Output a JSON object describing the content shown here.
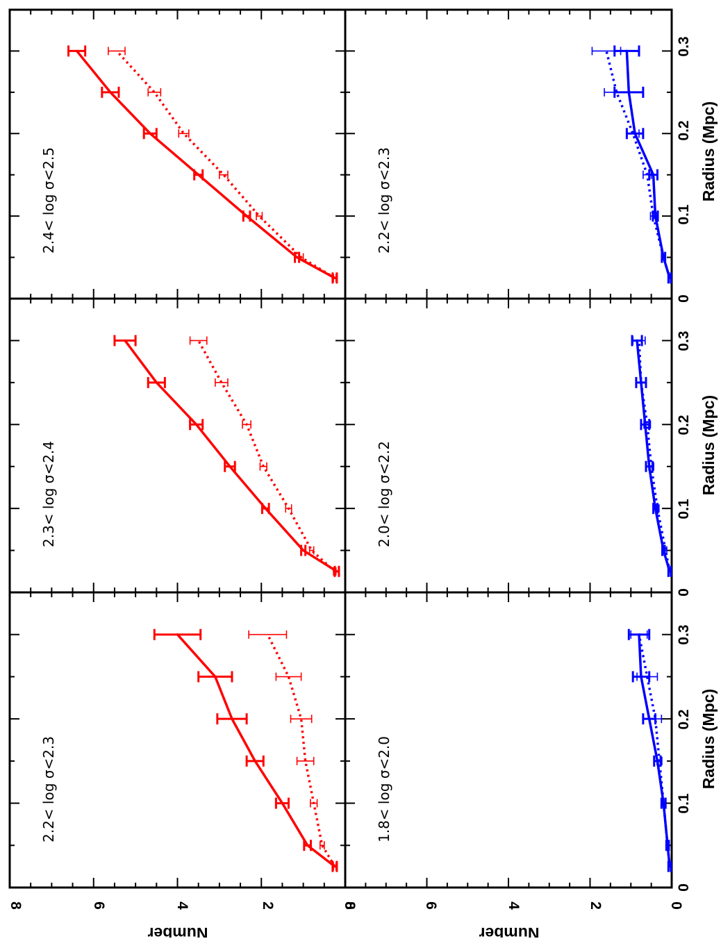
{
  "figure": {
    "y_axis_label": "Number",
    "x_axis_label": "Radius (Mpc)",
    "x_ticks": [
      "0",
      "0.1",
      "0.2",
      "0.3"
    ],
    "y_ticks": [
      "0",
      "2",
      "4",
      "6",
      "8"
    ],
    "colors": {
      "red": "#ff0000",
      "blue": "#0000ff"
    }
  },
  "chart_data": [
    {
      "type": "line",
      "label": "2.2< log σ<2.3",
      "color": "#ff0000",
      "xlim": [
        0,
        0.35
      ],
      "ylim": [
        0,
        8
      ],
      "series": [
        {
          "style": "solid",
          "x": [
            0.025,
            0.05,
            0.1,
            0.15,
            0.2,
            0.25,
            0.3
          ],
          "y": [
            0.25,
            0.9,
            1.5,
            2.15,
            2.7,
            3.1,
            4.0
          ],
          "err": [
            0.05,
            0.08,
            0.15,
            0.2,
            0.35,
            0.4,
            0.55
          ]
        },
        {
          "style": "dotted",
          "x": [
            0.025,
            0.05,
            0.1,
            0.15,
            0.2,
            0.25,
            0.3
          ],
          "y": [
            0.25,
            0.55,
            0.75,
            0.95,
            1.05,
            1.35,
            1.85
          ],
          "err": [
            0.03,
            0.05,
            0.08,
            0.2,
            0.25,
            0.3,
            0.45
          ]
        }
      ]
    },
    {
      "type": "line",
      "label": "2.3< log σ<2.4",
      "color": "#ff0000",
      "xlim": [
        0,
        0.35
      ],
      "ylim": [
        0,
        8
      ],
      "series": [
        {
          "style": "solid",
          "x": [
            0.025,
            0.05,
            0.1,
            0.15,
            0.2,
            0.25,
            0.3
          ],
          "y": [
            0.2,
            1.0,
            1.9,
            2.75,
            3.55,
            4.5,
            5.25
          ],
          "err": [
            0.05,
            0.05,
            0.08,
            0.12,
            0.15,
            0.2,
            0.25
          ]
        },
        {
          "style": "dotted",
          "x": [
            0.025,
            0.05,
            0.1,
            0.15,
            0.2,
            0.25,
            0.3
          ],
          "y": [
            0.25,
            0.8,
            1.35,
            1.95,
            2.35,
            2.95,
            3.5
          ],
          "err": [
            0.03,
            0.05,
            0.07,
            0.08,
            0.1,
            0.15,
            0.2
          ]
        }
      ]
    },
    {
      "type": "line",
      "label": "2.4< log σ<2.5",
      "color": "#ff0000",
      "xlim": [
        0,
        0.35
      ],
      "ylim": [
        0,
        8
      ],
      "series": [
        {
          "style": "solid",
          "x": [
            0.025,
            0.05,
            0.1,
            0.15,
            0.2,
            0.25,
            0.3
          ],
          "y": [
            0.25,
            1.15,
            2.35,
            3.5,
            4.65,
            5.6,
            6.4
          ],
          "err": [
            0.05,
            0.05,
            0.08,
            0.1,
            0.15,
            0.2,
            0.2
          ]
        },
        {
          "style": "dotted",
          "x": [
            0.025,
            0.05,
            0.1,
            0.15,
            0.2,
            0.25,
            0.3
          ],
          "y": [
            0.25,
            1.05,
            2.05,
            2.9,
            3.85,
            4.55,
            5.45
          ],
          "err": [
            0.03,
            0.05,
            0.07,
            0.1,
            0.12,
            0.15,
            0.2
          ]
        }
      ]
    },
    {
      "type": "line",
      "label": "1.8< log σ<2.0",
      "color": "#0000ff",
      "xlim": [
        0,
        0.35
      ],
      "ylim": [
        0,
        8
      ],
      "series": [
        {
          "style": "solid",
          "x": [
            0.025,
            0.05,
            0.1,
            0.15,
            0.2,
            0.25,
            0.3
          ],
          "y": [
            0.05,
            0.1,
            0.2,
            0.35,
            0.55,
            0.75,
            0.8
          ],
          "err": [
            0.03,
            0.03,
            0.05,
            0.08,
            0.15,
            0.2,
            0.25
          ]
        },
        {
          "style": "dotted",
          "x": [
            0.025,
            0.05,
            0.1,
            0.15,
            0.2,
            0.25,
            0.3
          ],
          "y": [
            0.05,
            0.1,
            0.2,
            0.3,
            0.4,
            0.6,
            0.8
          ],
          "err": [
            0.02,
            0.03,
            0.04,
            0.06,
            0.15,
            0.25,
            0.2
          ]
        }
      ]
    },
    {
      "type": "line",
      "label": "2.0< log σ<2.2",
      "color": "#0000ff",
      "xlim": [
        0,
        0.35
      ],
      "ylim": [
        0,
        8
      ],
      "series": [
        {
          "style": "solid",
          "x": [
            0.025,
            0.05,
            0.1,
            0.15,
            0.2,
            0.25,
            0.3
          ],
          "y": [
            0.05,
            0.2,
            0.4,
            0.55,
            0.65,
            0.75,
            0.85
          ],
          "err": [
            0.03,
            0.03,
            0.05,
            0.08,
            0.1,
            0.12,
            0.12
          ]
        },
        {
          "style": "dotted",
          "x": [
            0.025,
            0.05,
            0.1,
            0.15,
            0.2,
            0.25,
            0.3
          ],
          "y": [
            0.05,
            0.15,
            0.35,
            0.5,
            0.6,
            0.75,
            0.8
          ],
          "err": [
            0.02,
            0.03,
            0.04,
            0.06,
            0.08,
            0.12,
            0.15
          ]
        }
      ]
    },
    {
      "type": "line",
      "label": "2.2< log σ<2.3",
      "color": "#0000ff",
      "xlim": [
        0,
        0.35
      ],
      "ylim": [
        0,
        8
      ],
      "series": [
        {
          "style": "solid",
          "x": [
            0.025,
            0.05,
            0.1,
            0.15,
            0.2,
            0.25,
            0.3
          ],
          "y": [
            0.05,
            0.2,
            0.4,
            0.45,
            0.9,
            1.05,
            1.1
          ],
          "err": [
            0.03,
            0.04,
            0.06,
            0.1,
            0.2,
            0.35,
            0.3
          ]
        },
        {
          "style": "dotted",
          "x": [
            0.025,
            0.05,
            0.1,
            0.15,
            0.2,
            0.25,
            0.3
          ],
          "y": [
            0.05,
            0.2,
            0.45,
            0.6,
            0.95,
            1.35,
            1.6
          ],
          "err": [
            0.02,
            0.04,
            0.07,
            0.1,
            0.15,
            0.3,
            0.35
          ]
        }
      ]
    }
  ]
}
